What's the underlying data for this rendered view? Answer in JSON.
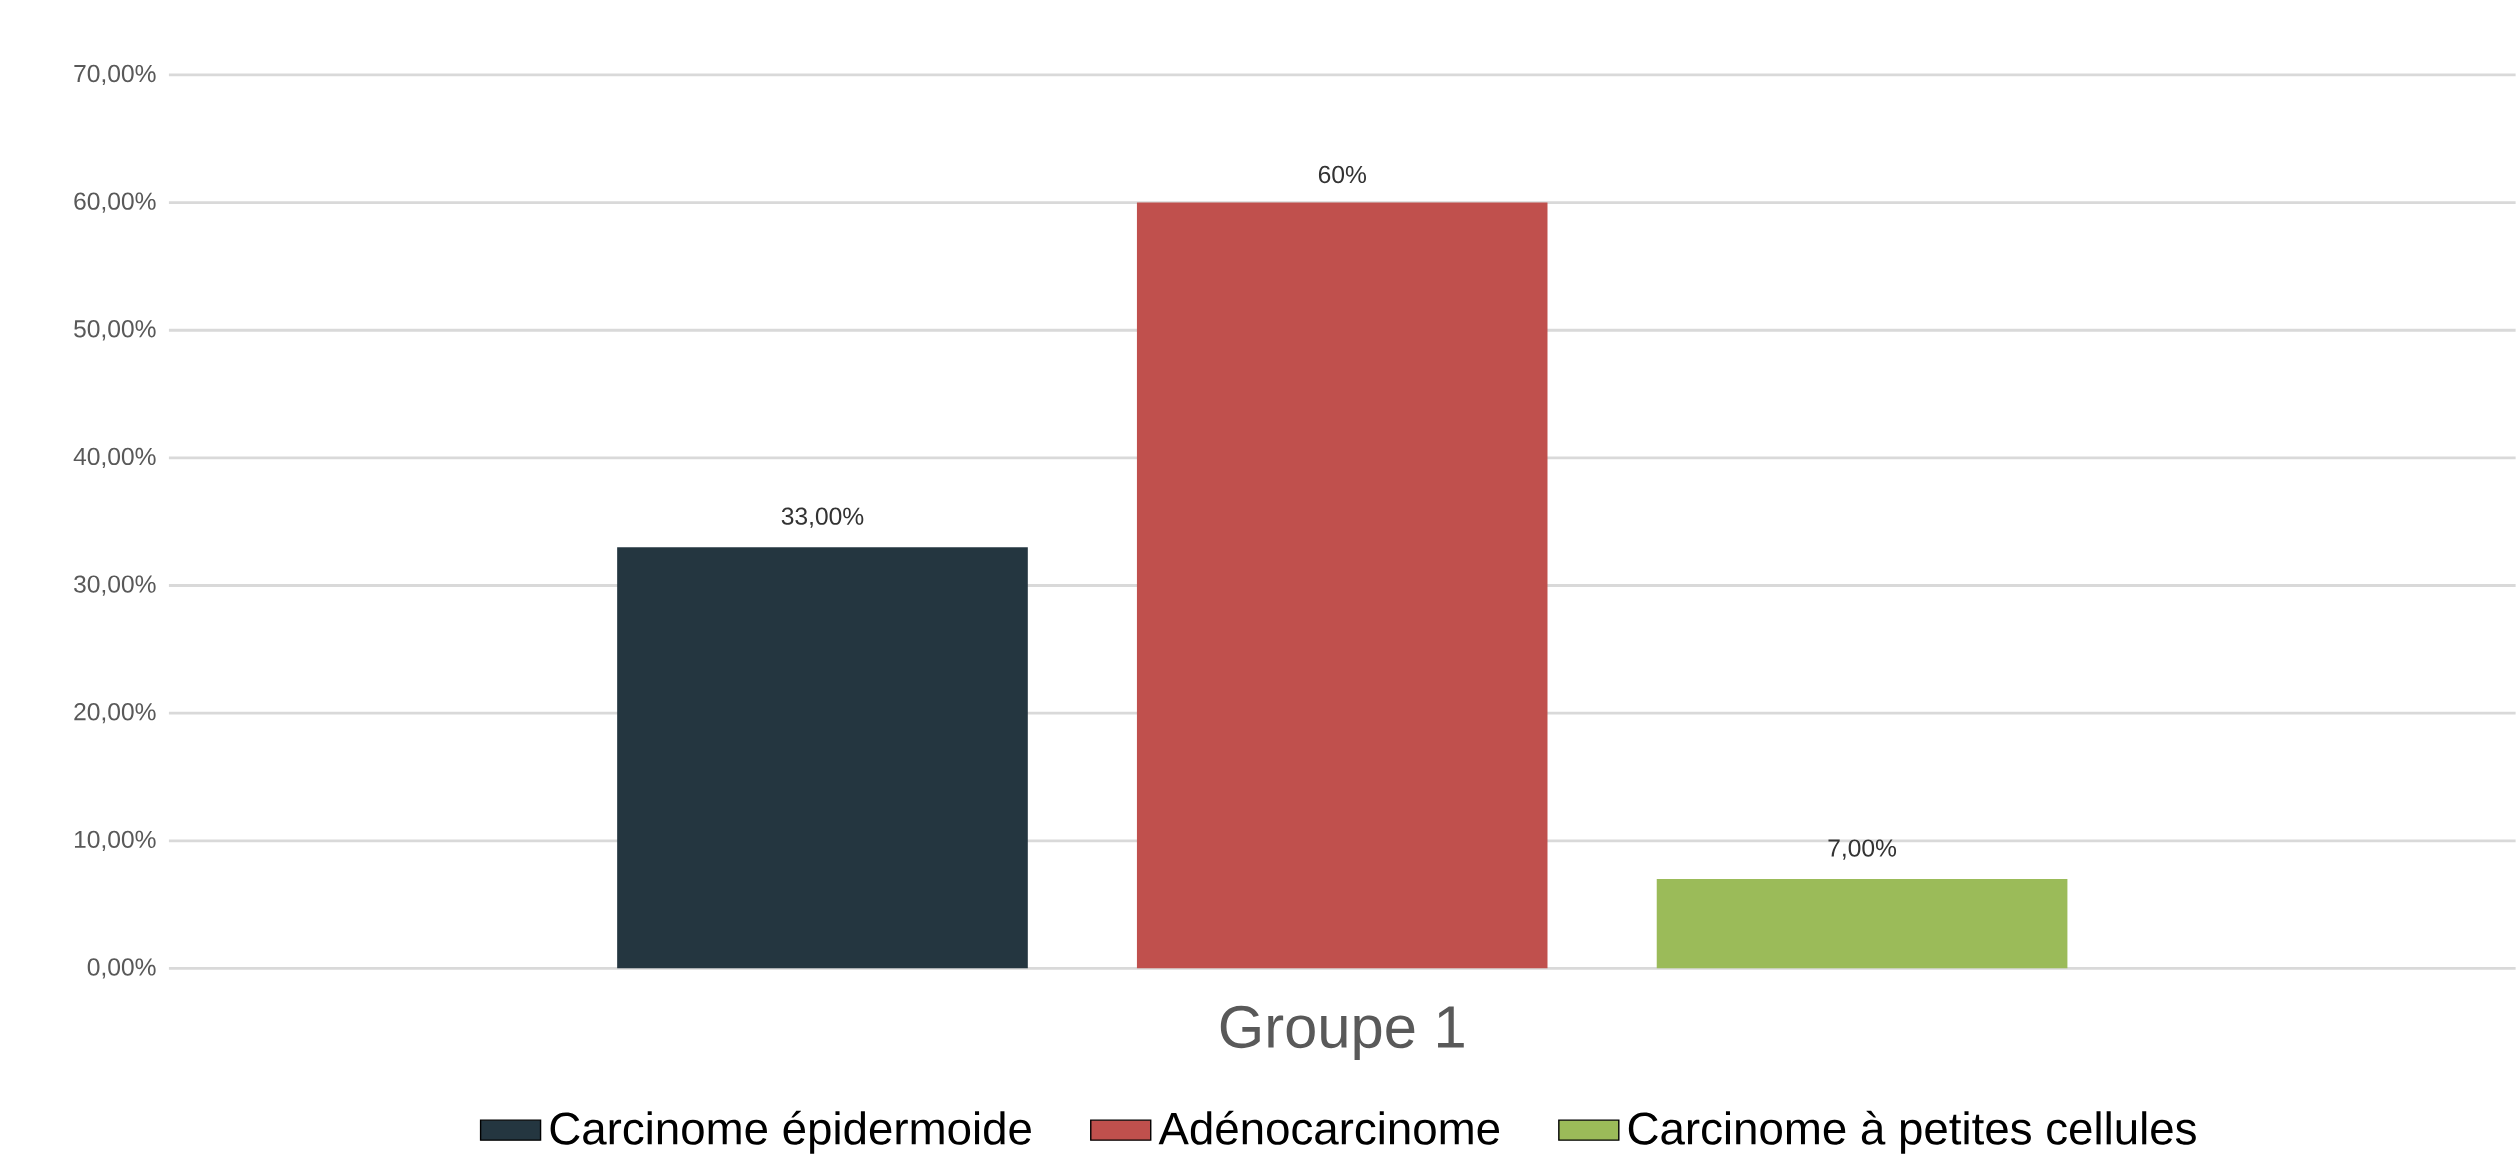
{
  "chart_data": {
    "type": "bar",
    "categories": [
      "Groupe 1"
    ],
    "series": [
      {
        "name": "Carcinome épidermoide",
        "color": "#243640",
        "values": [
          33
        ],
        "value_labels": [
          "33,00%"
        ]
      },
      {
        "name": "Adénocarcinome",
        "color": "#c0504d",
        "values": [
          60
        ],
        "value_labels": [
          "60%"
        ]
      },
      {
        "name": "Carcinome à petites cellules",
        "color": "#9bbb59",
        "values": [
          7
        ],
        "value_labels": [
          "7,00%"
        ]
      }
    ],
    "ylim": [
      0,
      70
    ],
    "yticks": [
      {
        "value": 0,
        "label": "0,00%"
      },
      {
        "value": 10,
        "label": "10,00%"
      },
      {
        "value": 20,
        "label": "20,00%"
      },
      {
        "value": 30,
        "label": "30,00%"
      },
      {
        "value": 40,
        "label": "40,00%"
      },
      {
        "value": 50,
        "label": "50,00%"
      },
      {
        "value": 60,
        "label": "60,00%"
      },
      {
        "value": 70,
        "label": "70,00%"
      }
    ],
    "grid": "y",
    "legend": "bottom"
  }
}
